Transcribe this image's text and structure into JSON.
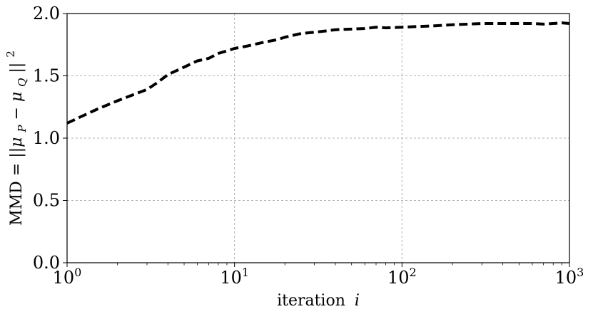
{
  "chart_data": {
    "type": "line",
    "title": "",
    "xlabel": "iteration",
    "xlabel_var": "i",
    "ylabel_prefix": "MMD = ",
    "ylabel_math": "||μ",
    "ylabel_sub_p": "P",
    "ylabel_minus": " − μ",
    "ylabel_sub_q": "Q",
    "ylabel_end": "||",
    "ylabel_sup": "2",
    "x_scale": "log",
    "xlim": [
      1,
      1000
    ],
    "ylim": [
      0.0,
      2.0
    ],
    "grid": true,
    "x_ticks": [
      {
        "value": 1,
        "base": "10",
        "exp": "0"
      },
      {
        "value": 10,
        "base": "10",
        "exp": "1"
      },
      {
        "value": 100,
        "base": "10",
        "exp": "2"
      },
      {
        "value": 1000,
        "base": "10",
        "exp": "3"
      }
    ],
    "y_ticks": [
      {
        "value": 0.0,
        "label": "0.0"
      },
      {
        "value": 0.5,
        "label": "0.5"
      },
      {
        "value": 1.0,
        "label": "1.0"
      },
      {
        "value": 1.5,
        "label": "1.5"
      },
      {
        "value": 2.0,
        "label": "2.0"
      }
    ],
    "series": [
      {
        "color": "#000000",
        "style": "dashed",
        "x": [
          1,
          1.2,
          1.5,
          2,
          2.5,
          3,
          3.5,
          4,
          5,
          6,
          7,
          8,
          9,
          10,
          12,
          15,
          18,
          20,
          25,
          30,
          35,
          40,
          50,
          60,
          70,
          80,
          100,
          120,
          150,
          200,
          250,
          300,
          400,
          500,
          600,
          700,
          800,
          900,
          1000
        ],
        "y": [
          1.12,
          1.17,
          1.23,
          1.3,
          1.35,
          1.39,
          1.45,
          1.51,
          1.57,
          1.62,
          1.64,
          1.68,
          1.7,
          1.72,
          1.74,
          1.77,
          1.79,
          1.81,
          1.84,
          1.85,
          1.86,
          1.87,
          1.875,
          1.88,
          1.89,
          1.885,
          1.89,
          1.895,
          1.9,
          1.91,
          1.915,
          1.92,
          1.92,
          1.92,
          1.92,
          1.915,
          1.92,
          1.925,
          1.92
        ]
      }
    ]
  }
}
